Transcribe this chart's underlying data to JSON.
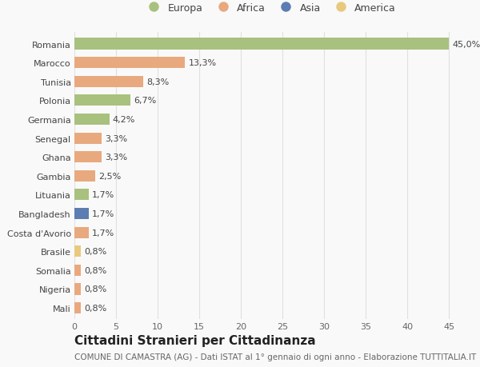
{
  "categories": [
    "Romania",
    "Marocco",
    "Tunisia",
    "Polonia",
    "Germania",
    "Senegal",
    "Ghana",
    "Gambia",
    "Lituania",
    "Bangladesh",
    "Costa d'Avorio",
    "Brasile",
    "Somalia",
    "Nigeria",
    "Mali"
  ],
  "values": [
    45.0,
    13.3,
    8.3,
    6.7,
    4.2,
    3.3,
    3.3,
    2.5,
    1.7,
    1.7,
    1.7,
    0.8,
    0.8,
    0.8,
    0.8
  ],
  "labels": [
    "45,0%",
    "13,3%",
    "8,3%",
    "6,7%",
    "4,2%",
    "3,3%",
    "3,3%",
    "2,5%",
    "1,7%",
    "1,7%",
    "1,7%",
    "0,8%",
    "0,8%",
    "0,8%",
    "0,8%"
  ],
  "colors": [
    "#a8c17e",
    "#e8a97e",
    "#e8a97e",
    "#a8c17e",
    "#a8c17e",
    "#e8a97e",
    "#e8a97e",
    "#e8a97e",
    "#a8c17e",
    "#5b7db1",
    "#e8a97e",
    "#e8c97e",
    "#e8a97e",
    "#e8a97e",
    "#e8a97e"
  ],
  "legend_labels": [
    "Europa",
    "Africa",
    "Asia",
    "America"
  ],
  "legend_colors": [
    "#a8c17e",
    "#e8a97e",
    "#5b7db1",
    "#e8c97e"
  ],
  "title": "Cittadini Stranieri per Cittadinanza",
  "subtitle": "COMUNE DI CAMASTRA (AG) - Dati ISTAT al 1° gennaio di ogni anno - Elaborazione TUTTITALIA.IT",
  "xlim": [
    0,
    47
  ],
  "xticks": [
    0,
    5,
    10,
    15,
    20,
    25,
    30,
    35,
    40,
    45
  ],
  "background_color": "#f9f9f9",
  "grid_color": "#e0e0e0",
  "bar_height": 0.6,
  "title_fontsize": 11,
  "subtitle_fontsize": 7.5,
  "label_fontsize": 8,
  "tick_fontsize": 8,
  "legend_fontsize": 9
}
